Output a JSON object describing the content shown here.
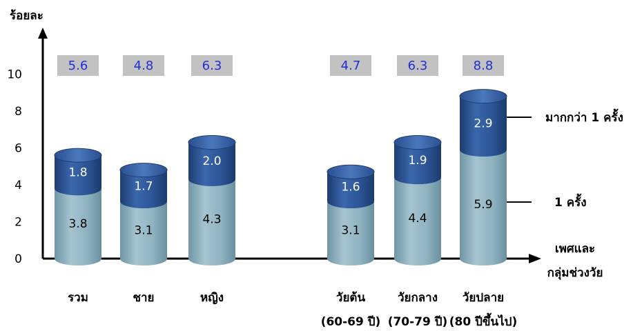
{
  "chart_data": {
    "type": "bar",
    "stacked": true,
    "ylabel": "ร้อยละ",
    "xlabel": [
      "เพศและ",
      "กลุ่มช่วงวัย"
    ],
    "ylim": [
      0,
      10
    ],
    "yticks": [
      0,
      2,
      4,
      6,
      8,
      10
    ],
    "categories": [
      {
        "label": "รวม",
        "sublabel": ""
      },
      {
        "label": "ชาย",
        "sublabel": ""
      },
      {
        "label": "หญิง",
        "sublabel": ""
      },
      {
        "label": "วัยต้น",
        "sublabel": "(60-69 ปี)"
      },
      {
        "label": "วัยกลาง",
        "sublabel": "(70-79 ปี)"
      },
      {
        "label": "วัยปลาย",
        "sublabel": "(80 ปีขึ้นไป)"
      }
    ],
    "totals": [
      "5.6",
      "4.8",
      "6.3",
      "4.7",
      "6.3",
      "8.8"
    ],
    "series": [
      {
        "name": "1 ครั้ง",
        "values": [
          3.8,
          3.1,
          4.3,
          3.1,
          4.4,
          5.9
        ],
        "color": "#8fb3c0"
      },
      {
        "name": "มากกว่า 1 ครั้ง",
        "values": [
          1.8,
          1.7,
          2.0,
          1.6,
          1.9,
          2.9
        ],
        "color": "#2a4f8f"
      }
    ],
    "total_label_color": "#1f2fd6",
    "total_box_color": "#c2c2c2",
    "grid": false,
    "legend": "right"
  }
}
